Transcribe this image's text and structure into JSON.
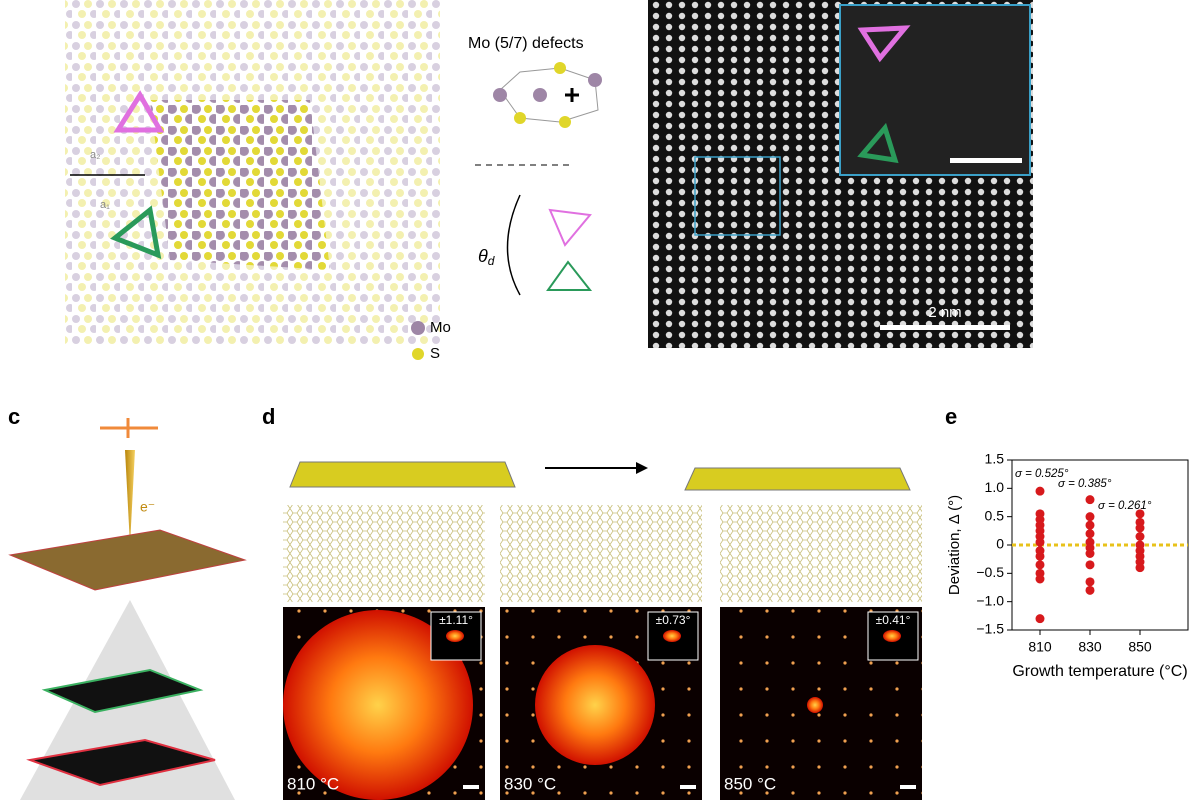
{
  "figure": {
    "panel_labels": [
      "c",
      "d",
      "e"
    ],
    "defect_title": "Mo (5/7) defects",
    "theta": "θ",
    "theta_sub": "d",
    "legend": [
      "Mo",
      "S"
    ],
    "vectors": [
      "a₂",
      "a₁"
    ],
    "scale_bar": "2 nm",
    "electron": "e⁻",
    "temperatures": [
      "810 °C",
      "830 °C",
      "850 °C"
    ],
    "insets": [
      "±1.11°",
      "±0.73°",
      "±0.41°"
    ]
  },
  "chart_data": {
    "type": "scatter",
    "ylabel": "Deviation, Δ (°)",
    "xlabel": "Growth temperature (°C)",
    "categories": [
      "810",
      "830",
      "850"
    ],
    "values": [
      [
        0.95,
        0.55,
        0.45,
        0.35,
        0.25,
        0.15,
        0.05,
        -0.1,
        -0.2,
        -0.35,
        -0.5,
        -0.6,
        -1.3
      ],
      [
        0.8,
        0.5,
        0.35,
        0.2,
        0.05,
        -0.05,
        -0.15,
        -0.35,
        -0.65,
        -0.8
      ],
      [
        0.55,
        0.4,
        0.3,
        0.15,
        0,
        -0.1,
        -0.2,
        -0.3,
        -0.4
      ]
    ],
    "color": "#d7191c",
    "reference_line": 0,
    "reference_color": "#e8c21a",
    "ylim": [
      -1.5,
      1.5
    ],
    "yticks": [
      {
        "value": -1.5,
        "label": "−1.5"
      },
      {
        "value": -1,
        "label": "−1.0"
      },
      {
        "value": -0.5,
        "label": "−0.5"
      },
      0,
      0.5,
      {
        "value": 1,
        "label": "1.0"
      },
      1.5
    ],
    "annotations": [
      "σ = 0.525°",
      "σ = 0.385°",
      "σ = 0.261°"
    ]
  }
}
